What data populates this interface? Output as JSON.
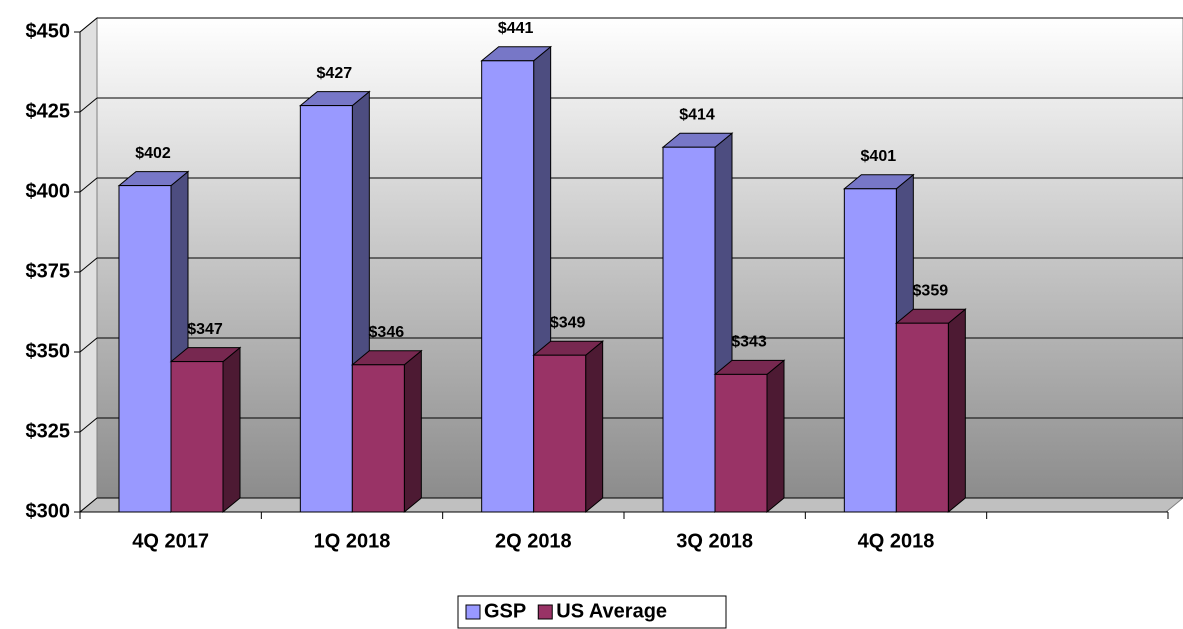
{
  "chart_data": {
    "type": "bar3d",
    "categories": [
      "4Q 2017",
      "1Q 2018",
      "2Q 2018",
      "3Q 2018",
      "4Q 2018",
      null
    ],
    "series": [
      {
        "name": "GSP",
        "color": "#9999ff",
        "values": [
          402,
          427,
          441,
          414,
          401,
          null
        ],
        "value_labels": [
          "$402",
          "$427",
          "$441",
          "$414",
          "$401",
          null
        ]
      },
      {
        "name": "US Average",
        "color": "#993366",
        "values": [
          347,
          346,
          349,
          343,
          359,
          null
        ],
        "value_labels": [
          "$347",
          "$346",
          "$349",
          "$343",
          "$359",
          null
        ]
      }
    ],
    "ylim": [
      300,
      450
    ],
    "yticks": [
      {
        "value": 300,
        "label": "$300"
      },
      {
        "value": 325,
        "label": "$325"
      },
      {
        "value": 350,
        "label": "$350"
      },
      {
        "value": 375,
        "label": "$375"
      },
      {
        "value": 400,
        "label": "$400"
      },
      {
        "value": 425,
        "label": "$425"
      },
      {
        "value": 450,
        "label": "$450"
      }
    ],
    "grid": true,
    "legend": "bottom"
  }
}
